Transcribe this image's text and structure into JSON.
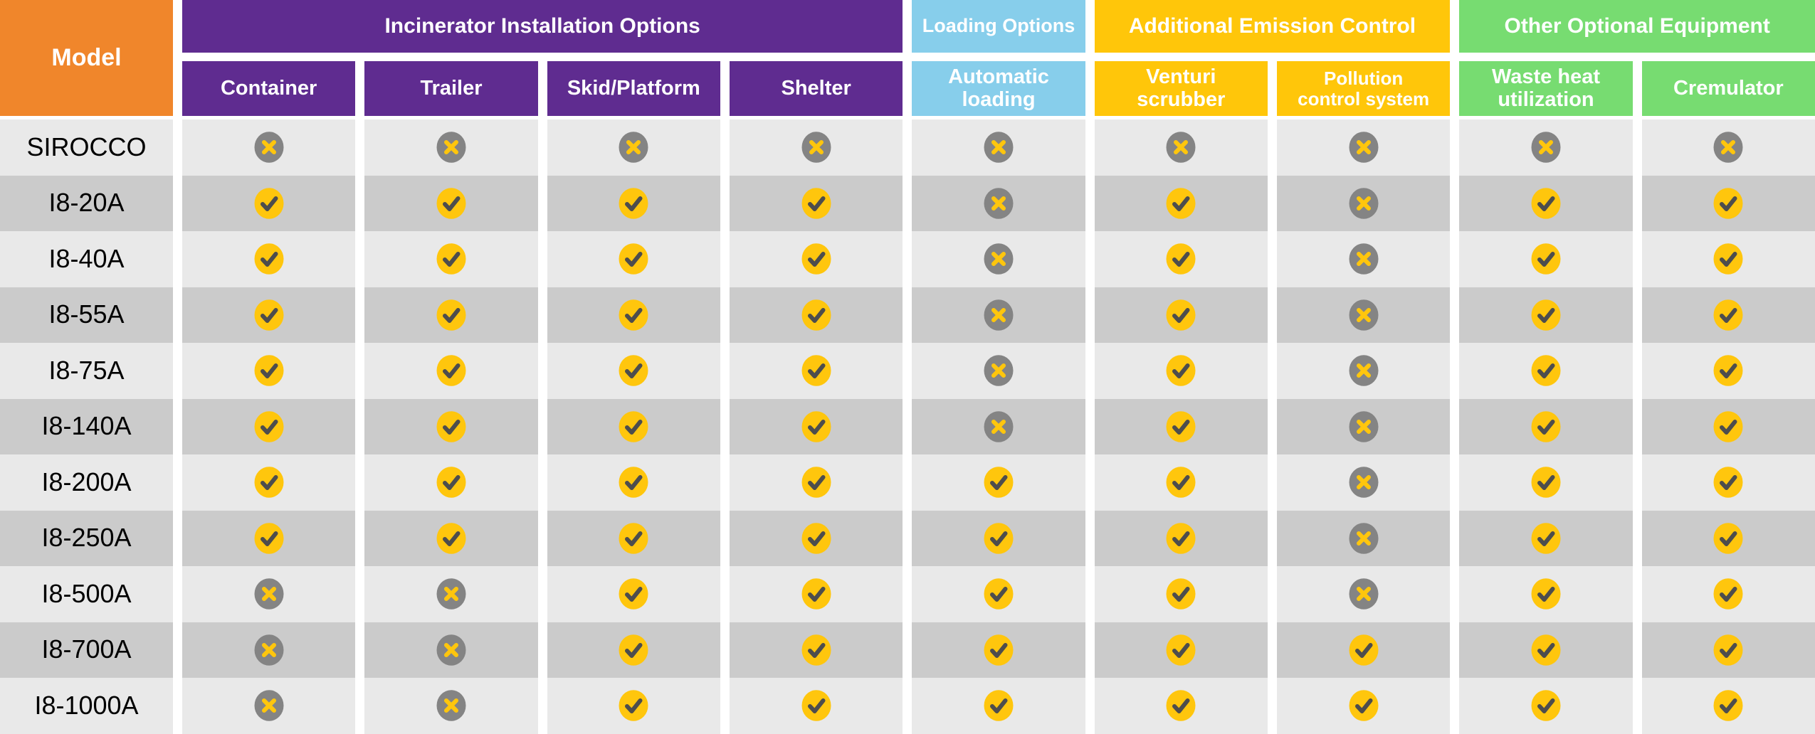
{
  "chart_data": {
    "type": "table",
    "model_header": "Model",
    "groups": [
      {
        "label": "Incinerator Installation Options",
        "color": "#5F2C90",
        "span": 4
      },
      {
        "label": "Loading Options",
        "color": "#87CEEB",
        "span": 1
      },
      {
        "label": "Additional Emission Control",
        "color": "#FFC60A",
        "span": 2
      },
      {
        "label": "Other Optional Equipment",
        "color": "#77DC71",
        "span": 2
      }
    ],
    "columns": [
      {
        "label": "Container",
        "group": 0
      },
      {
        "label": "Trailer",
        "group": 0
      },
      {
        "label": "Skid/Platform",
        "group": 0
      },
      {
        "label": "Shelter",
        "group": 0
      },
      {
        "label": "Automatic\nloading",
        "group": 1
      },
      {
        "label": "Venturi\nscrubber",
        "group": 2
      },
      {
        "label": "Pollution\ncontrol system",
        "group": 2
      },
      {
        "label": "Waste heat\nutilization",
        "group": 3
      },
      {
        "label": "Cremulator",
        "group": 3
      }
    ],
    "rows": [
      {
        "model": "SIROCCO",
        "values": [
          0,
          0,
          0,
          0,
          0,
          0,
          0,
          0,
          0
        ]
      },
      {
        "model": "I8-20A",
        "values": [
          1,
          1,
          1,
          1,
          0,
          1,
          0,
          1,
          1
        ]
      },
      {
        "model": "I8-40A",
        "values": [
          1,
          1,
          1,
          1,
          0,
          1,
          0,
          1,
          1
        ]
      },
      {
        "model": "I8-55A",
        "values": [
          1,
          1,
          1,
          1,
          0,
          1,
          0,
          1,
          1
        ]
      },
      {
        "model": "I8-75A",
        "values": [
          1,
          1,
          1,
          1,
          0,
          1,
          0,
          1,
          1
        ]
      },
      {
        "model": "I8-140A",
        "values": [
          1,
          1,
          1,
          1,
          0,
          1,
          0,
          1,
          1
        ]
      },
      {
        "model": "I8-200A",
        "values": [
          1,
          1,
          1,
          1,
          1,
          1,
          0,
          1,
          1
        ]
      },
      {
        "model": "I8-250A",
        "values": [
          1,
          1,
          1,
          1,
          1,
          1,
          0,
          1,
          1
        ]
      },
      {
        "model": "I8-500A",
        "values": [
          0,
          0,
          1,
          1,
          1,
          1,
          0,
          1,
          1
        ]
      },
      {
        "model": "I8-700A",
        "values": [
          0,
          0,
          1,
          1,
          1,
          1,
          1,
          1,
          1
        ]
      },
      {
        "model": "I8-1000A",
        "values": [
          0,
          0,
          1,
          1,
          1,
          1,
          1,
          1,
          1
        ]
      }
    ],
    "icons": {
      "yes": "check-icon",
      "no": "cross-icon"
    }
  },
  "colors": {
    "model_header_bg": "#F0862B",
    "header_text": "#FFFFFF",
    "model_text": "#000000",
    "row_light": "#E9E9E9",
    "row_dark": "#CBCBCB",
    "icon_yes_bg": "#FFC60D",
    "icon_no_bg": "#848484",
    "icon_check": "#4D4D4D",
    "icon_cross": "#FFC60D"
  }
}
